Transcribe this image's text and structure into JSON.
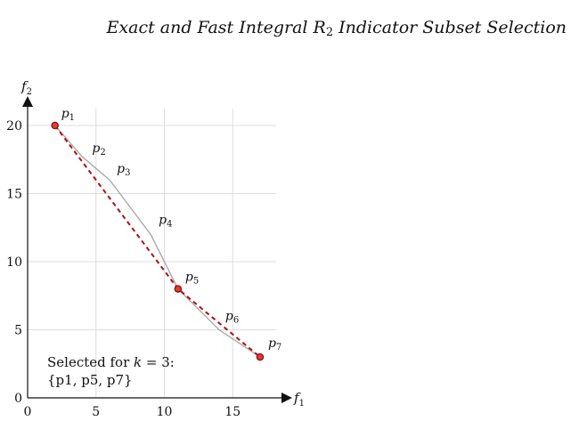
{
  "header": {
    "text_before_sub": "Exact and Fast Integral R",
    "sub": "2",
    "text_after_sub": " Indicator Subset Selection"
  },
  "chart_data": {
    "type": "line",
    "xlabel": "f",
    "xlabel_sub": "1",
    "ylabel": "f",
    "ylabel_sub": "2",
    "xlim": [
      0,
      18
    ],
    "ylim": [
      0,
      21
    ],
    "xticks": [
      0,
      5,
      10,
      15
    ],
    "yticks": [
      0,
      5,
      10,
      15,
      20
    ],
    "grid": true,
    "series": [
      {
        "points": [
          {
            "label": "p",
            "sub": "1",
            "x": 2,
            "y": 20
          },
          {
            "label": "p",
            "sub": "2",
            "x": 4,
            "y": 17.7
          },
          {
            "label": "p",
            "sub": "3",
            "x": 6,
            "y": 16
          },
          {
            "label": "p",
            "sub": "4",
            "x": 9,
            "y": 12
          },
          {
            "label": "p",
            "sub": "5",
            "x": 11,
            "y": 8
          },
          {
            "label": "p",
            "sub": "6",
            "x": 14,
            "y": 5
          },
          {
            "label": "p",
            "sub": "7",
            "x": 17,
            "y": 3
          }
        ],
        "color": "#aaaaaa"
      },
      {
        "points": [
          {
            "x": 2,
            "y": 20
          },
          {
            "x": 11,
            "y": 8
          },
          {
            "x": 17,
            "y": 3
          }
        ],
        "color": "#b01010",
        "style": "dashed"
      }
    ]
  },
  "annotation": {
    "line1_text": "Selected for ",
    "line1_var": "k",
    "line1_eq": " = 3:",
    "line2": "{p1, p5, p7}"
  }
}
